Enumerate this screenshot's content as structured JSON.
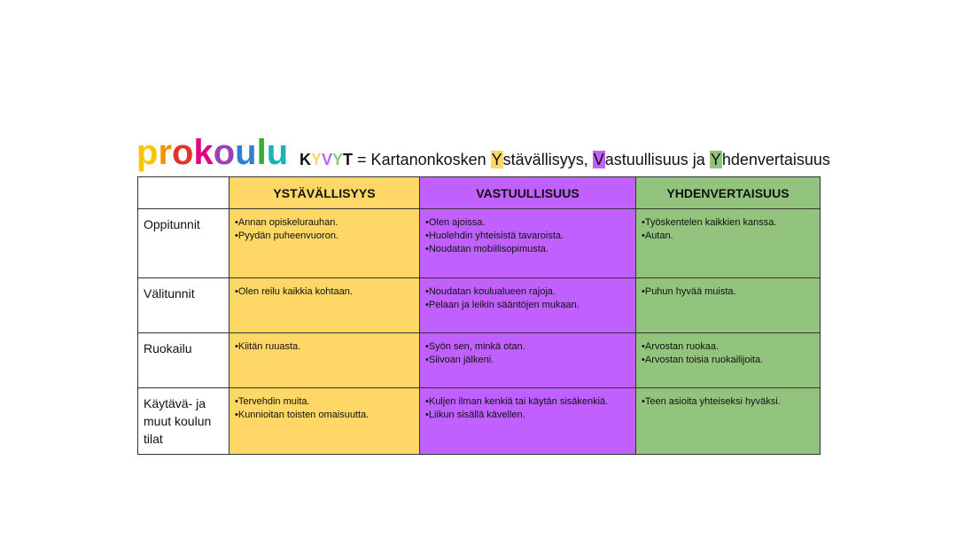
{
  "logo": {
    "text": "prokoulu",
    "letters": [
      [
        "p",
        "#f7c600"
      ],
      [
        "r",
        "#f39200"
      ],
      [
        "o",
        "#e6332a"
      ],
      [
        "k",
        "#e5007e"
      ],
      [
        "o",
        "#9b3fb5"
      ],
      [
        "u",
        "#2f7fd2"
      ],
      [
        "l",
        "#3aaa35"
      ],
      [
        "u",
        "#1bb1b8"
      ]
    ]
  },
  "title": {
    "k": "K",
    "y1": "Y",
    "v": "V",
    "y2": "Y",
    "t": "T",
    "eq": " = Kartanonkosken ",
    "w1": "Y",
    "w1r": "stävällisyys, ",
    "w2": "V",
    "w2r": "astuullisuus ja ",
    "w3": "Y",
    "w3r": "hdenvertaisuus"
  },
  "colors": {
    "yellow": "#fed766",
    "purple": "#c060ff",
    "green": "#93c47d"
  },
  "table": {
    "headers": [
      "YSTÄVÄLLISYYS",
      "VASTUULLISUUS",
      "YHDENVERTAISUUS"
    ],
    "rows": [
      {
        "label": "Oppitunnit",
        "cells": [
          [
            "•Annan opiskelurauhan.",
            "•Pyydän puheenvuoron."
          ],
          [
            "•Olen ajoissa.",
            "•Huolehdin yhteisistä tavaroista.",
            "•Noudatan mobiilisopimusta."
          ],
          [
            "•Työskentelen kaikkien kanssa.",
            "•Autan."
          ]
        ]
      },
      {
        "label": "Välitunnit",
        "cells": [
          [
            "•Olen reilu kaikkia kohtaan."
          ],
          [
            "•Noudatan koulualueen rajoja.",
            "•Pelaan ja leikin sääntöjen mukaan."
          ],
          [
            "•Puhun hyvää muista."
          ]
        ]
      },
      {
        "label": "Ruokailu",
        "cells": [
          [
            "•Kiitän ruuasta."
          ],
          [
            "•Syön sen, minkä otan.",
            "•Siivoan jälkeni."
          ],
          [
            "•Arvostan ruokaa.",
            "•Arvostan toisia ruokailijoita."
          ]
        ]
      },
      {
        "label": "Käytävä- ja muut koulun tilat",
        "cells": [
          [
            "•Tervehdin muita.",
            "•Kunnioitan toisten omaisuutta."
          ],
          [
            "•Kuljen ilman kenkiä tai käytän sisäkenkiä.",
            "•Liikun sisällä kävellen."
          ],
          [
            "•Teen asioita yhteiseksi hyväksi."
          ]
        ]
      }
    ]
  }
}
